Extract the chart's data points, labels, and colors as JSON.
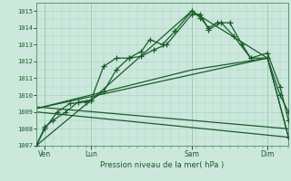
{
  "xlabel": "Pression niveau de la mer( hPa )",
  "ylim": [
    1007,
    1015.5
  ],
  "xlim": [
    0,
    60
  ],
  "background_color": "#cce8dc",
  "grid_color": "#aad4c4",
  "line_color": "#1a5c2a",
  "day_labels": [
    "Ven",
    "Lun",
    "Sam",
    "Dim"
  ],
  "day_positions": [
    2,
    13,
    37,
    55
  ],
  "series1_x": [
    0,
    2,
    4,
    7,
    10,
    13,
    16,
    19,
    22,
    25,
    27,
    30,
    33,
    37,
    39,
    41,
    43,
    46,
    49,
    51,
    55,
    58,
    60
  ],
  "series1_y": [
    1007.0,
    1008.1,
    1008.5,
    1009.0,
    1009.6,
    1009.7,
    1011.7,
    1012.2,
    1012.2,
    1012.6,
    1013.3,
    1013.0,
    1013.8,
    1015.0,
    1014.6,
    1014.0,
    1014.3,
    1014.3,
    1013.0,
    1012.2,
    1012.5,
    1010.5,
    1008.5
  ],
  "series2_x": [
    0,
    2,
    5,
    8,
    12,
    13,
    16,
    19,
    22,
    25,
    28,
    31,
    37,
    39,
    41,
    44,
    47,
    51,
    55,
    58,
    60
  ],
  "series2_y": [
    1007.0,
    1008.0,
    1009.0,
    1009.5,
    1009.6,
    1009.7,
    1010.2,
    1011.5,
    1012.2,
    1012.3,
    1012.7,
    1013.0,
    1014.8,
    1014.8,
    1013.9,
    1014.3,
    1013.5,
    1012.2,
    1012.2,
    1010.0,
    1009.0
  ],
  "series3_x": [
    0,
    13,
    37,
    55,
    60
  ],
  "series3_y": [
    1007.0,
    1009.7,
    1015.0,
    1012.2,
    1007.5
  ],
  "series4_x": [
    0,
    55,
    60
  ],
  "series4_y": [
    1009.2,
    1012.2,
    1007.5
  ],
  "series5_x": [
    0,
    37,
    55
  ],
  "series5_y": [
    1009.2,
    1011.5,
    1012.2
  ],
  "series6_x": [
    0,
    60
  ],
  "series6_y": [
    1009.0,
    1007.5
  ],
  "series7_x": [
    0,
    60
  ],
  "series7_y": [
    1009.3,
    1008.0
  ]
}
